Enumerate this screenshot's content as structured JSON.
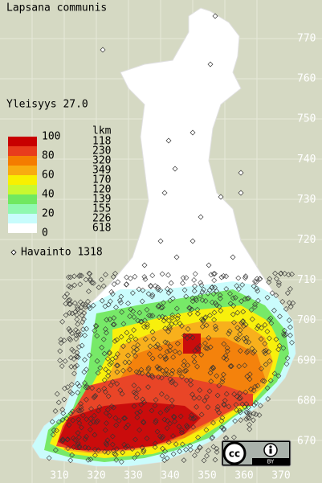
{
  "title": "Lapsana communis",
  "frequency": "Yleisyys  27.0",
  "legend": {
    "scale_labels": [
      "100",
      "80",
      "60",
      "40",
      "20",
      "0"
    ],
    "count_header": "lkm",
    "bands": [
      {
        "color": "#c80000",
        "count": 118
      },
      {
        "color": "#e83c1c",
        "count": 230
      },
      {
        "color": "#f47c00",
        "count": 320
      },
      {
        "color": "#f8ac10",
        "count": 349
      },
      {
        "color": "#f8f000",
        "count": 170
      },
      {
        "color": "#c8f830",
        "count": 120
      },
      {
        "color": "#70e860",
        "count": 139
      },
      {
        "color": "#90f8b0",
        "count": 155
      },
      {
        "color": "#c8fcfc",
        "count": 226
      },
      {
        "color": "#ffffff",
        "count": 618
      }
    ]
  },
  "observations": "Havainto 1318",
  "y_axis": [
    "770",
    "760",
    "750",
    "740",
    "730",
    "720",
    "710",
    "700",
    "690",
    "680",
    "670"
  ],
  "x_axis": [
    "310",
    "320",
    "330",
    "340",
    "350",
    "360",
    "370"
  ],
  "license": {
    "cc": "cc",
    "by": "BY"
  }
}
